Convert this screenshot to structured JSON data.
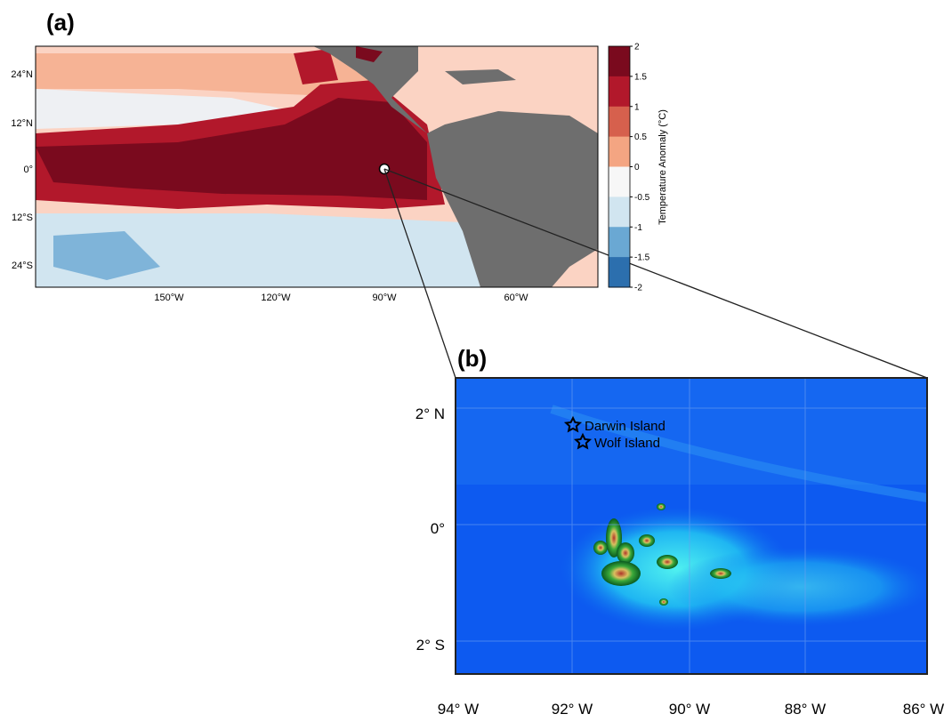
{
  "panel_a": {
    "label": "(a)",
    "lat_labels": [
      "24°N",
      "12°N",
      "0°",
      "12°S",
      "24°S"
    ],
    "lon_labels": [
      "150°W",
      "120°W",
      "90°W",
      "60°W"
    ],
    "colorbar": {
      "label": "Temperature Anomaly (°C)",
      "ticks": [
        2,
        1.5,
        1,
        0.5,
        0,
        -0.5,
        -1,
        -1.5,
        -2
      ],
      "colors": [
        "#7a0a1e",
        "#b2182b",
        "#d6604d",
        "#f4a582",
        "#f7f7f7",
        "#d1e5f0",
        "#6aa8d3",
        "#2c6fae"
      ]
    }
  },
  "panel_b": {
    "label": "(b)",
    "lat_labels": [
      "2° N",
      "0°",
      "2° S"
    ],
    "lon_labels": [
      "94° W",
      "92° W",
      "90° W",
      "88° W",
      "86° W"
    ],
    "sites": [
      "Darwin Island",
      "Wolf Island"
    ]
  }
}
